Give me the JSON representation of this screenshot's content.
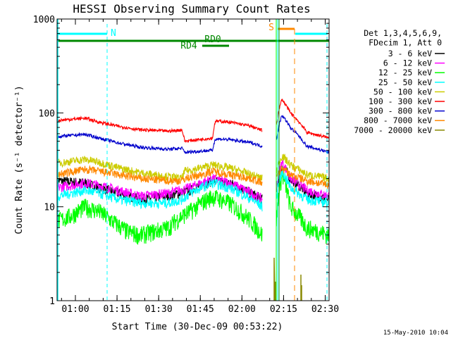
{
  "chart_data": {
    "type": "line",
    "title": "HESSI Observing Summary Count Rates",
    "xlabel": "Start Time (30-Dec-09 00:53:22)",
    "ylabel": "Count Rate (s⁻¹ detector⁻¹)",
    "y_scale": "log",
    "ylim": [
      1,
      1000
    ],
    "x_unit": "minutes since 00:53:22",
    "xlim": [
      0,
      98
    ],
    "x_ticks": [
      {
        "m": 6.6,
        "label": "01:00"
      },
      {
        "m": 21.6,
        "label": "01:15"
      },
      {
        "m": 36.6,
        "label": "01:30"
      },
      {
        "m": 51.6,
        "label": "01:45"
      },
      {
        "m": 66.6,
        "label": "02:00"
      },
      {
        "m": 81.6,
        "label": "02:15"
      },
      {
        "m": 96.6,
        "label": "02:30"
      }
    ],
    "y_ticks": [
      {
        "v": 1,
        "label": "1"
      },
      {
        "v": 10,
        "label": "10"
      },
      {
        "v": 100,
        "label": "100"
      },
      {
        "v": 1000,
        "label": "1000"
      }
    ],
    "legend": {
      "header": [
        "Det 1,3,4,5,6,9,",
        "FDecim 1, Att 0"
      ],
      "position": "right"
    },
    "series": [
      {
        "name": "3 - 6 keV",
        "color": "#000000",
        "x": [
          0,
          10,
          15,
          22,
          30,
          40,
          48,
          52,
          56,
          62,
          66,
          70,
          72,
          74
        ],
        "y": [
          19,
          18,
          16,
          14,
          12,
          13,
          15,
          17,
          19,
          18,
          16,
          14,
          13,
          12
        ],
        "x2": [
          79,
          81,
          84,
          90,
          98
        ],
        "y2": [
          15,
          28,
          20,
          14,
          12
        ]
      },
      {
        "name": "6 - 12 keV",
        "color": "#ff00ff",
        "x": [
          0,
          10,
          15,
          22,
          30,
          40,
          48,
          52,
          56,
          62,
          66,
          70,
          72,
          74
        ],
        "y": [
          16,
          18,
          17,
          15,
          13,
          14,
          16,
          18,
          20,
          18,
          16,
          14,
          13,
          12
        ],
        "x2": [
          79,
          81,
          84,
          90,
          98
        ],
        "y2": [
          16,
          30,
          20,
          15,
          13
        ]
      },
      {
        "name": "12 - 25 keV",
        "color": "#00ff00",
        "x": [
          0,
          5,
          10,
          15,
          20,
          25,
          30,
          40,
          45,
          48,
          52,
          56,
          62,
          66,
          70,
          72,
          74
        ],
        "y": [
          7,
          8,
          10,
          9,
          7,
          5.5,
          5,
          6,
          8,
          9,
          11,
          13,
          11,
          9,
          7,
          6,
          5
        ],
        "x2": [
          79,
          81,
          84,
          90,
          98
        ],
        "y2": [
          7,
          22,
          10,
          6,
          5
        ]
      },
      {
        "name": "25 - 50 keV",
        "color": "#00ffff",
        "x": [
          0,
          10,
          15,
          22,
          30,
          40,
          45,
          48,
          52,
          56,
          62,
          66,
          70,
          72,
          74
        ],
        "y": [
          13,
          15,
          14,
          12,
          11,
          11,
          12,
          14,
          16,
          18,
          16,
          14,
          12,
          11,
          10
        ],
        "x2": [
          79,
          81,
          84,
          90,
          98
        ],
        "y2": [
          13,
          24,
          16,
          12,
          11
        ]
      },
      {
        "name": "50 - 100 keV",
        "color": "#cccc00",
        "x": [
          0,
          10,
          15,
          22,
          30,
          40,
          45,
          46,
          52,
          56,
          62,
          66,
          70,
          72,
          74
        ],
        "y": [
          29,
          32,
          30,
          26,
          23,
          21,
          20,
          24,
          26,
          28,
          26,
          24,
          22,
          21,
          20
        ],
        "x2": [
          79,
          81,
          84,
          90,
          98
        ],
        "y2": [
          24,
          35,
          28,
          22,
          20
        ]
      },
      {
        "name": "100 - 300 keV",
        "color": "#ff0000",
        "x": [
          0,
          10,
          15,
          22,
          30,
          40,
          45,
          46,
          56,
          57,
          62,
          66,
          70,
          72,
          74
        ],
        "y": [
          83,
          88,
          80,
          72,
          66,
          64,
          66,
          50,
          54,
          82,
          80,
          76,
          72,
          68,
          65
        ],
        "x2": [
          79,
          81,
          84,
          90,
          98
        ],
        "y2": [
          75,
          140,
          100,
          62,
          54
        ]
      },
      {
        "name": "300 - 800 keV",
        "color": "#0000cc",
        "x": [
          0,
          10,
          15,
          22,
          30,
          40,
          45,
          46,
          56,
          57,
          62,
          66,
          70,
          72,
          74
        ],
        "y": [
          56,
          59,
          54,
          48,
          43,
          41,
          42,
          38,
          40,
          53,
          52,
          50,
          48,
          46,
          44
        ],
        "x2": [
          79,
          81,
          84,
          90,
          98
        ],
        "y2": [
          52,
          95,
          70,
          44,
          38
        ]
      },
      {
        "name": "800 - 7000 keV",
        "color": "#ff8800",
        "x": [
          0,
          10,
          15,
          22,
          30,
          40,
          45,
          46,
          52,
          56,
          62,
          66,
          70,
          72,
          74
        ],
        "y": [
          22,
          25,
          24,
          22,
          20,
          19,
          19,
          20,
          22,
          24,
          22,
          21,
          20,
          19,
          18
        ],
        "x2": [
          79,
          81,
          84,
          90,
          98
        ],
        "y2": [
          20,
          26,
          22,
          19,
          17
        ]
      },
      {
        "name": "7000 - 20000 keV",
        "color": "#888800",
        "x": [],
        "y": [],
        "x2": [],
        "y2": []
      }
    ],
    "markers": {
      "flags": [
        {
          "label": "N",
          "color": "#00ffff"
        },
        {
          "label": "RD0",
          "color": "#008800"
        },
        {
          "label": "RD4",
          "color": "#008800"
        },
        {
          "label": "S",
          "color": "#ff8800"
        }
      ]
    },
    "footer_time": "15-May-2010 10:04"
  }
}
